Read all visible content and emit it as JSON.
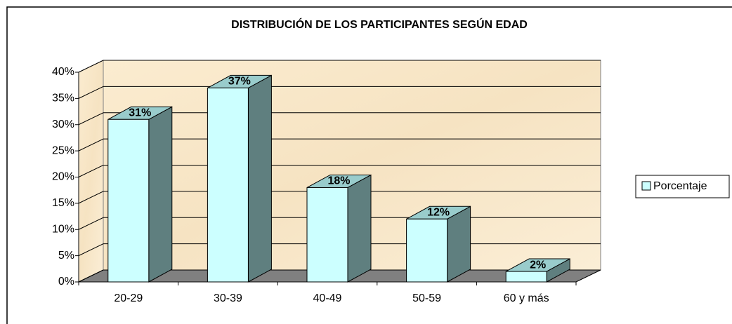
{
  "chart_data": {
    "type": "bar3d",
    "title": "DISTRIBUCIÓN DE LOS PARTICIPANTES SEGÚN EDAD",
    "categories": [
      "20-29",
      "30-39",
      "40-49",
      "50-59",
      "60 y más"
    ],
    "series": [
      {
        "name": "Porcentaje",
        "color": "#ccffff",
        "values": [
          31,
          37,
          18,
          12,
          2
        ],
        "value_labels": [
          "31%",
          "37%",
          "18%",
          "12%",
          "2%"
        ]
      }
    ],
    "ylim": [
      0,
      40
    ],
    "yticks": [
      {
        "value": 0,
        "label": "0%"
      },
      {
        "value": 5,
        "label": "5%"
      },
      {
        "value": 10,
        "label": "10%"
      },
      {
        "value": 15,
        "label": "15%"
      },
      {
        "value": 20,
        "label": "20%"
      },
      {
        "value": 25,
        "label": "25%"
      },
      {
        "value": 30,
        "label": "30%"
      },
      {
        "value": 35,
        "label": "35%"
      },
      {
        "value": 40,
        "label": "40%"
      }
    ],
    "grid": true,
    "legend": "right"
  }
}
